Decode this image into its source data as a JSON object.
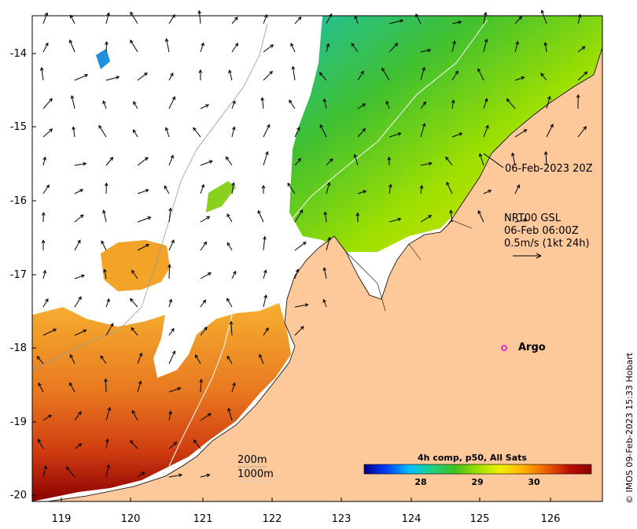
{
  "axes": {
    "y_ticks": [
      "-14",
      "-15",
      "-16",
      "-17",
      "-18",
      "-19",
      "-20"
    ],
    "x_ticks": [
      "119",
      "120",
      "121",
      "122",
      "123",
      "124",
      "125",
      "126"
    ]
  },
  "annotations": {
    "coastline_date": "06-Feb-2023 20Z",
    "current_product": "NRT00 GSL",
    "current_time": "06-Feb 06:00Z",
    "current_scale": "0.5m/s (1kt 24h)",
    "argo_label": "Argo",
    "isobath_200": "200m",
    "isobath_1000": "1000m"
  },
  "colorbar": {
    "title": "4h comp, p50, All Sats",
    "ticks": [
      "28",
      "29",
      "30"
    ],
    "colors": [
      "#00008b",
      "#0040ff",
      "#00c0ff",
      "#20d080",
      "#40c020",
      "#a0e000",
      "#f0f000",
      "#ffb000",
      "#f06000",
      "#c01000",
      "#8b0000"
    ]
  },
  "copyright": "© IMOS 09-Feb-2023 15:33 Hobart",
  "colors": {
    "land": "#fdc99b",
    "sea_blank": "#ffffff",
    "argo_marker": "#e000e0"
  }
}
